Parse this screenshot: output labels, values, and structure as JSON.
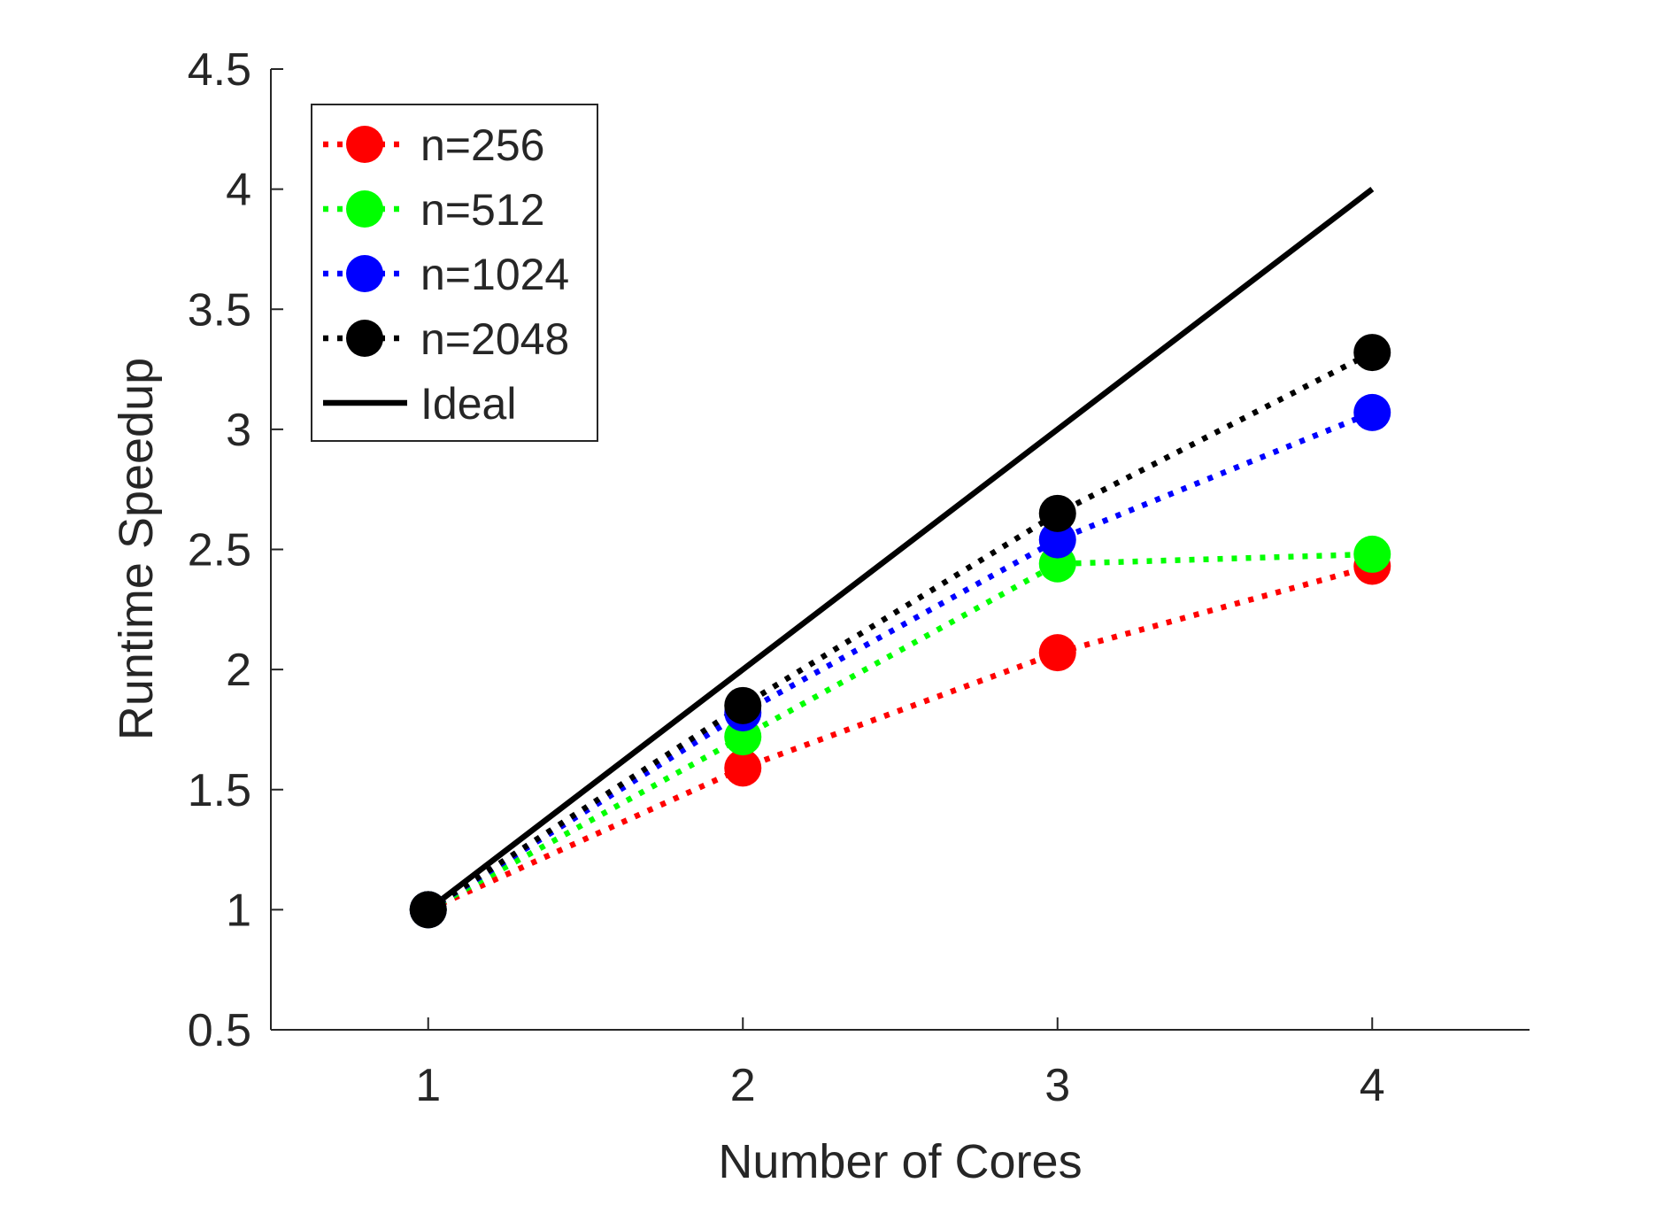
{
  "chart_data": {
    "type": "line",
    "title": "",
    "xlabel": "Number of Cores",
    "ylabel": "Runtime Speedup",
    "x": [
      1,
      2,
      3,
      4
    ],
    "xlim": [
      0.5,
      4.5
    ],
    "ylim": [
      0.5,
      4.5
    ],
    "xticks": [
      "1",
      "2",
      "3",
      "4"
    ],
    "yticks": [
      "0.5",
      "1",
      "1.5",
      "2",
      "2.5",
      "3",
      "3.5",
      "4",
      "4.5"
    ],
    "grid": false,
    "legend_position": "top-left",
    "series": [
      {
        "name": "n=256",
        "color": "#ff0000",
        "style": "dotted",
        "marker": "circle",
        "values": [
          1,
          1.59,
          2.07,
          2.43
        ]
      },
      {
        "name": "n=512",
        "color": "#00ff00",
        "style": "dotted",
        "marker": "circle",
        "values": [
          1,
          1.72,
          2.44,
          2.48
        ]
      },
      {
        "name": "n=1024",
        "color": "#0000ff",
        "style": "dotted",
        "marker": "circle",
        "values": [
          1,
          1.82,
          2.54,
          3.07
        ]
      },
      {
        "name": "n=2048",
        "color": "#000000",
        "style": "dotted",
        "marker": "circle",
        "values": [
          1,
          1.85,
          2.65,
          3.32
        ]
      },
      {
        "name": "Ideal",
        "color": "#000000",
        "style": "solid",
        "marker": "none",
        "values": [
          1,
          2,
          3,
          4
        ]
      }
    ]
  }
}
